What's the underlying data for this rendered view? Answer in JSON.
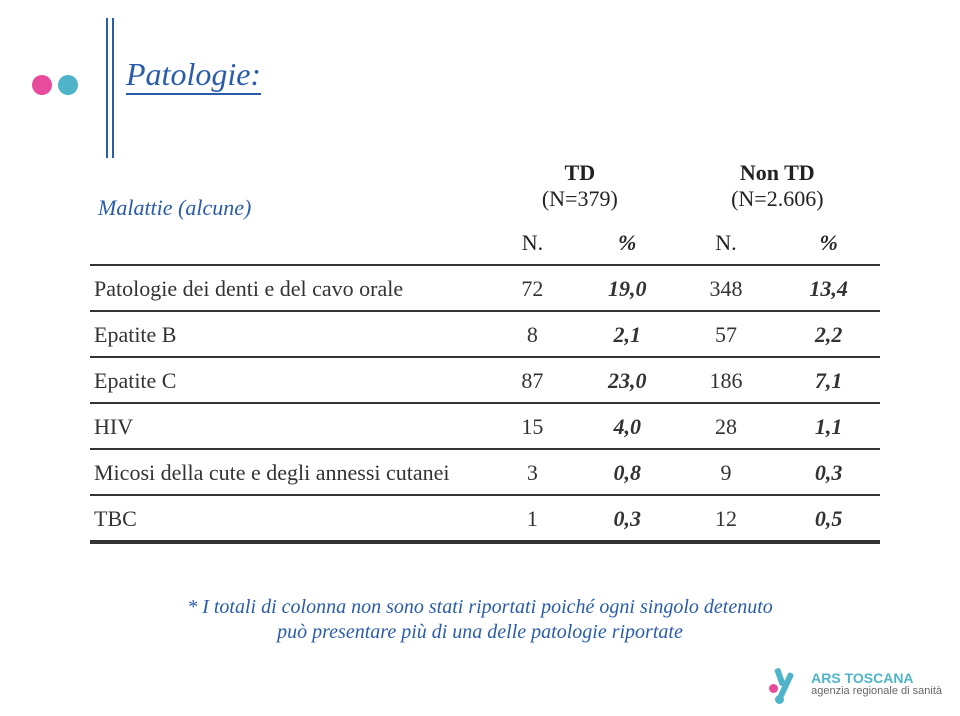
{
  "title": "Patologie:",
  "colors": {
    "accent": "#2a5caa",
    "dot_pink": "#e84b9b",
    "dot_teal": "#4fb4c8",
    "rule": "#333333",
    "bg": "#ffffff"
  },
  "table": {
    "header": {
      "row_label": "Malattie (alcune)",
      "group1_label": "TD",
      "group1_sub": "(N=379)",
      "group2_label": "Non TD",
      "group2_sub": "(N=2.606)",
      "col_n": "N.",
      "col_pct": "%"
    },
    "rows": [
      {
        "label": "Patologie dei denti e del cavo orale",
        "n1": "72",
        "p1": "19,0",
        "n2": "348",
        "p2": "13,4"
      },
      {
        "label": "Epatite B",
        "n1": "8",
        "p1": "2,1",
        "n2": "57",
        "p2": "2,2"
      },
      {
        "label": "Epatite C",
        "n1": "87",
        "p1": "23,0",
        "n2": "186",
        "p2": "7,1"
      },
      {
        "label": "HIV",
        "n1": "15",
        "p1": "4,0",
        "n2": "28",
        "p2": "1,1"
      },
      {
        "label": "Micosi della cute e degli annessi cutanei",
        "n1": "3",
        "p1": "0,8",
        "n2": "9",
        "p2": "0,3"
      },
      {
        "label": "TBC",
        "n1": "1",
        "p1": "0,3",
        "n2": "12",
        "p2": "0,5"
      }
    ]
  },
  "footnote_line1": "* I totali di colonna non sono stati riportati poiché ogni singolo detenuto",
  "footnote_line2": "può presentare più di una delle patologie riportate",
  "logo": {
    "line1": "ARS TOSCANA",
    "line2": "agenzia regionale di sanità"
  }
}
